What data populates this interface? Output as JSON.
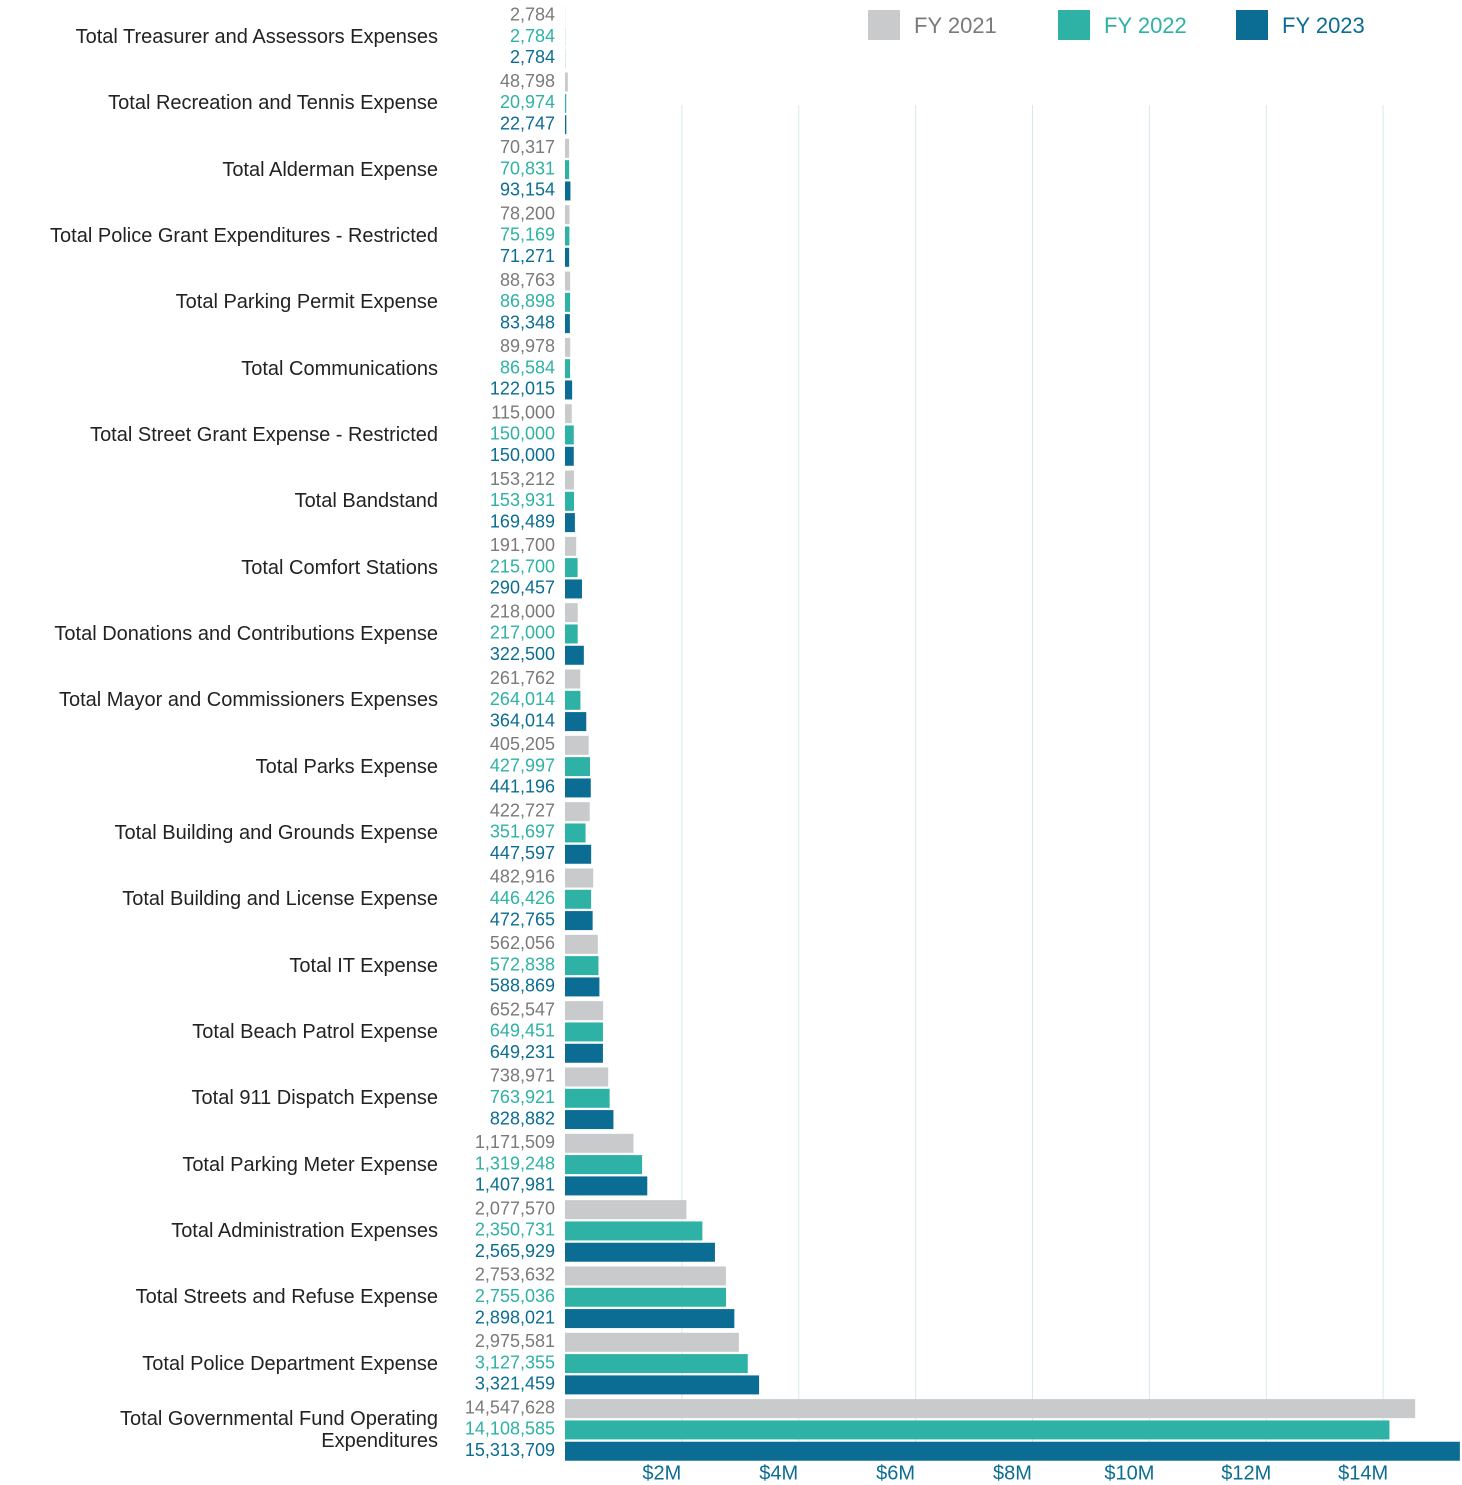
{
  "chart_data": {
    "type": "hbar",
    "categories": [
      "Total Treasurer and Assessors Expenses",
      "Total Recreation and Tennis Expense",
      "Total Alderman Expense",
      "Total Police Grant Expenditures - Restricted",
      "Total Parking Permit Expense",
      "Total Communications",
      "Total Street Grant Expense - Restricted",
      "Total Bandstand",
      "Total Comfort Stations",
      "Total Donations and Contributions Expense",
      "Total Mayor and Commissioners Expenses",
      "Total Parks Expense",
      "Total Building and Grounds Expense",
      "Total Building and License Expense",
      "Total IT Expense",
      "Total Beach Patrol Expense",
      "Total 911 Dispatch Expense",
      "Total Parking Meter Expense",
      "Total Administration Expenses",
      "Total Streets and Refuse Expense",
      "Total Police Department Expense",
      "Total Governmental Fund Operating Expenditures"
    ],
    "series": [
      {
        "name": "FY 2021",
        "color": "#c9cacb",
        "label_color": "#7a7a7a",
        "values": [
          2784,
          48798,
          70317,
          78200,
          88763,
          89978,
          115000,
          153212,
          191700,
          218000,
          261762,
          405205,
          422727,
          482916,
          562056,
          652547,
          738971,
          1171509,
          2077570,
          2753632,
          2975581,
          14547628
        ],
        "value_labels": [
          "2,784",
          "48,798",
          "70,317",
          "78,200",
          "88,763",
          "89,978",
          "115,000",
          "153,212",
          "191,700",
          "218,000",
          "261,762",
          "405,205",
          "422,727",
          "482,916",
          "562,056",
          "652,547",
          "738,971",
          "1,171,509",
          "2,077,570",
          "2,753,632",
          "2,975,581",
          "14,547,628"
        ]
      },
      {
        "name": "FY 2022",
        "color": "#2eb2a5",
        "label_color": "#2eb2a5",
        "values": [
          2784,
          20974,
          70831,
          75169,
          86898,
          86584,
          150000,
          153931,
          215700,
          217000,
          264014,
          427997,
          351697,
          446426,
          572838,
          649451,
          763921,
          1319248,
          2350731,
          2755036,
          3127355,
          14108585
        ],
        "value_labels": [
          "2,784",
          "20,974",
          "70,831",
          "75,169",
          "86,898",
          "86,584",
          "150,000",
          "153,931",
          "215,700",
          "217,000",
          "264,014",
          "427,997",
          "351,697",
          "446,426",
          "572,838",
          "649,451",
          "763,921",
          "1,319,248",
          "2,350,731",
          "2,755,036",
          "3,127,355",
          "14,108,585"
        ]
      },
      {
        "name": "FY 2023",
        "color": "#0b6d94",
        "label_color": "#0b6d94",
        "values": [
          2784,
          22747,
          93154,
          71271,
          83348,
          122015,
          150000,
          169489,
          290457,
          322500,
          364014,
          441196,
          447597,
          472765,
          588869,
          649231,
          828882,
          1407981,
          2565929,
          2898021,
          3321459,
          15313709
        ],
        "value_labels": [
          "2,784",
          "22,747",
          "93,154",
          "71,271",
          "83,348",
          "122,015",
          "150,000",
          "169,489",
          "290,457",
          "322,500",
          "364,014",
          "441,196",
          "447,597",
          "472,765",
          "588,869",
          "649,231",
          "828,882",
          "1,407,981",
          "2,565,929",
          "2,898,021",
          "3,321,459",
          "15,313,709"
        ]
      }
    ],
    "xlim": [
      0,
      15350000
    ],
    "xticks": [
      {
        "value": 2000000,
        "label": "$2M"
      },
      {
        "value": 4000000,
        "label": "$4M"
      },
      {
        "value": 6000000,
        "label": "$6M"
      },
      {
        "value": 8000000,
        "label": "$8M"
      },
      {
        "value": 10000000,
        "label": "$10M"
      },
      {
        "value": 12000000,
        "label": "$12M"
      },
      {
        "value": 14000000,
        "label": "$14M"
      }
    ],
    "grid": true,
    "legend": "top-right"
  }
}
